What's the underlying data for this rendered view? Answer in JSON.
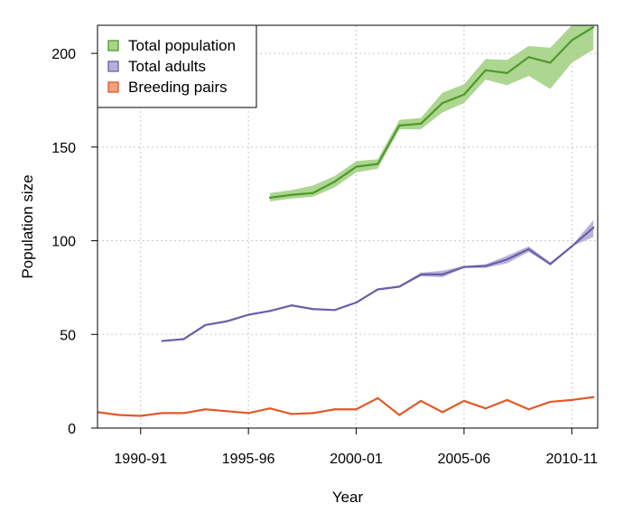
{
  "chart_data": {
    "type": "line",
    "title": "",
    "xlabel": "Year",
    "ylabel": "Population size",
    "xlim": [
      1988,
      2011.2
    ],
    "ylim": [
      0,
      215
    ],
    "grid": true,
    "legend_position": "top-left",
    "x_ticks": [
      {
        "value": 1990,
        "label": "1990-91"
      },
      {
        "value": 1995,
        "label": "1995-96"
      },
      {
        "value": 2000,
        "label": "2000-01"
      },
      {
        "value": 2005,
        "label": "2005-06"
      },
      {
        "value": 2010,
        "label": "2010-11"
      }
    ],
    "y_ticks": [
      {
        "value": 0,
        "label": "0"
      },
      {
        "value": 50,
        "label": "50"
      },
      {
        "value": 100,
        "label": "100"
      },
      {
        "value": 150,
        "label": "150"
      },
      {
        "value": 200,
        "label": "200"
      }
    ],
    "series": [
      {
        "name": "Total population",
        "color": "#4d9a2a",
        "band_color": "#a9d48b",
        "x": [
          1996,
          1997,
          1998,
          1999,
          2000,
          2001,
          2002,
          2003,
          2004,
          2005,
          2006,
          2007,
          2008,
          2009,
          2010,
          2011
        ],
        "values": [
          123,
          124.5,
          125.5,
          131.5,
          139.5,
          141,
          161.5,
          162.5,
          173.5,
          178,
          191,
          189.5,
          198,
          195,
          207,
          214
        ],
        "lower": [
          121,
          122.5,
          123.5,
          128.5,
          136.5,
          138.5,
          159.5,
          159.5,
          168.5,
          173.5,
          186,
          183,
          188,
          181,
          195,
          202
        ],
        "upper": [
          125.5,
          127,
          129.5,
          134.5,
          142.5,
          143.5,
          164.5,
          165.5,
          179,
          183.5,
          197,
          196.5,
          204,
          203,
          215,
          222
        ]
      },
      {
        "name": "Total adults",
        "color": "#6a5fa8",
        "band_color": "#b6b0d8",
        "x": [
          1991,
          1992,
          1993,
          1994,
          1995,
          1996,
          1997,
          1998,
          1999,
          2000,
          2001,
          2002,
          2003,
          2004,
          2005,
          2006,
          2007,
          2008,
          2009,
          2010,
          2011
        ],
        "values": [
          46.5,
          47.5,
          55,
          57,
          60.5,
          62.5,
          65.5,
          63.5,
          63,
          67,
          74,
          75.5,
          82,
          82,
          86,
          86.5,
          90,
          95.5,
          87.5,
          97,
          107
        ],
        "lower": [
          46.5,
          47.5,
          55,
          57,
          60.5,
          62.5,
          65.5,
          63.5,
          63,
          67,
          73.5,
          75,
          81,
          80.5,
          85.5,
          85.5,
          88,
          94,
          87,
          97,
          102
        ],
        "upper": [
          46.5,
          47.5,
          55,
          57,
          60.5,
          62.5,
          65.5,
          63.5,
          63,
          67,
          74.5,
          76,
          83,
          84,
          86.5,
          87.5,
          92,
          97,
          88.5,
          97.5,
          111
        ]
      },
      {
        "name": "Breeding pairs",
        "color": "#e05a28",
        "band_color": "#f4a07d",
        "x": [
          1988,
          1989,
          1990,
          1991,
          1992,
          1993,
          1994,
          1995,
          1996,
          1997,
          1998,
          1999,
          2000,
          2001,
          2002,
          2003,
          2004,
          2005,
          2006,
          2007,
          2008,
          2009,
          2010,
          2011
        ],
        "values": [
          8.5,
          7,
          6.5,
          8,
          8,
          10,
          9,
          8,
          10.5,
          7.5,
          8,
          10,
          10,
          16,
          7,
          14.5,
          8.5,
          14.5,
          10.5,
          15,
          10,
          14,
          15,
          16.5
        ],
        "lower": [],
        "upper": []
      }
    ]
  }
}
